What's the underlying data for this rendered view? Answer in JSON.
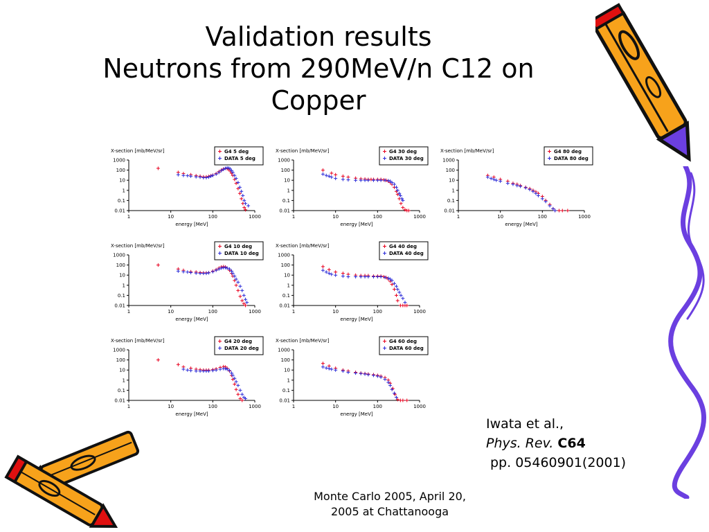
{
  "slide": {
    "title_lines": [
      "Validation results",
      "Neutrons from 290MeV/n C12 on",
      "Copper"
    ],
    "citation": {
      "author": "Iwata et al.,",
      "journal_italic": "Phys. Rev.",
      "journal_bold": "C64",
      "pages": "pp. 05460901(2001)"
    },
    "footer_lines": [
      "Monte Carlo 2005, April 20,",
      "2005 at Chattanooga"
    ]
  },
  "colors": {
    "g4": "#e8001e",
    "data": "#2a2ad8",
    "frame": "#000000",
    "deco_orange": "#f7a21b",
    "deco_purple": "#6b3fe0",
    "deco_red": "#e01010",
    "deco_green": "#1e9a2a"
  },
  "chart_data": [
    {
      "type": "scatter",
      "panel": "5deg",
      "ylabel": "X-section [mb/MeV/sr]",
      "xlabel": "energy [MeV]",
      "xscale": "log",
      "yscale": "log",
      "xlim": [
        1,
        1000
      ],
      "ylim": [
        0.01,
        1000
      ],
      "xticks": [
        "1",
        "10",
        "100",
        "1000"
      ],
      "yticks": [
        "0.01",
        "0.1",
        "1",
        "10",
        "100",
        "1000"
      ],
      "legend": {
        "position": "top-right",
        "entries": [
          "G4   5 deg",
          "DATA 5 deg"
        ]
      },
      "series": [
        {
          "name": "G4   5 deg",
          "color": "#e8001e",
          "x": [
            5,
            15,
            20,
            30,
            40,
            50,
            60,
            70,
            80,
            90,
            100,
            120,
            140,
            160,
            180,
            200,
            220,
            240,
            260,
            280,
            300,
            330,
            360,
            400,
            440,
            480,
            520,
            560,
            600
          ],
          "y": [
            150,
            60,
            45,
            35,
            28,
            25,
            22,
            22,
            24,
            28,
            32,
            45,
            70,
            100,
            130,
            150,
            140,
            110,
            80,
            50,
            30,
            12,
            5,
            1.5,
            0.5,
            0.15,
            0.05,
            0.02,
            0.012
          ]
        },
        {
          "name": "DATA 5 deg",
          "color": "#2a2ad8",
          "x": [
            15,
            20,
            25,
            30,
            40,
            50,
            60,
            70,
            80,
            90,
            100,
            120,
            140,
            160,
            180,
            200,
            220,
            240,
            260,
            280,
            300,
            330,
            360,
            400,
            440,
            480,
            520,
            560,
            600,
            700
          ],
          "y": [
            35,
            30,
            28,
            25,
            22,
            20,
            18,
            18,
            20,
            25,
            30,
            40,
            60,
            90,
            120,
            150,
            170,
            160,
            130,
            90,
            60,
            30,
            15,
            6,
            2,
            0.8,
            0.3,
            0.1,
            0.05,
            0.03
          ]
        }
      ]
    },
    {
      "type": "scatter",
      "panel": "30deg",
      "ylabel": "X-section [mb/MeV/sr]",
      "xlabel": "energy [MeV]",
      "xscale": "log",
      "yscale": "log",
      "xlim": [
        1,
        1000
      ],
      "ylim": [
        0.01,
        1000
      ],
      "xticks": [
        "1",
        "10",
        "100",
        "1000"
      ],
      "yticks": [
        "0.01",
        "0.1",
        "1",
        "10",
        "100",
        "1000"
      ],
      "legend": {
        "position": "top-right",
        "entries": [
          "G4  30 deg",
          "DATA 30 deg"
        ]
      },
      "series": [
        {
          "name": "G4  30 deg",
          "color": "#e8001e",
          "x": [
            5,
            8,
            10,
            15,
            20,
            30,
            40,
            50,
            60,
            70,
            80,
            100,
            120,
            140,
            160,
            180,
            200,
            220,
            250,
            280,
            300,
            330,
            360,
            400,
            450,
            500,
            550
          ],
          "y": [
            100,
            50,
            35,
            25,
            20,
            16,
            14,
            13,
            12,
            12,
            12,
            12,
            12,
            11,
            10,
            8,
            6,
            4,
            2,
            0.8,
            0.4,
            0.15,
            0.05,
            0.02,
            0.012,
            0.01,
            0.01
          ]
        },
        {
          "name": "DATA 30 deg",
          "color": "#2a2ad8",
          "x": [
            5,
            6,
            7,
            8,
            10,
            15,
            20,
            30,
            40,
            50,
            60,
            80,
            100,
            120,
            150,
            180,
            200,
            220,
            250,
            280,
            300,
            330,
            350,
            380,
            400
          ],
          "y": [
            40,
            30,
            25,
            20,
            15,
            12,
            11,
            10,
            10,
            10,
            10,
            10,
            10,
            10,
            10,
            9,
            8,
            6,
            4,
            2,
            1,
            0.5,
            0.3,
            0.15,
            0.1
          ]
        }
      ]
    },
    {
      "type": "scatter",
      "panel": "80deg",
      "ylabel": "X-section [mb/MeV/sr]",
      "xlabel": "energy [MeV]",
      "xscale": "log",
      "yscale": "log",
      "xlim": [
        1,
        1000
      ],
      "ylim": [
        0.01,
        1000
      ],
      "xticks": [
        "1",
        "10",
        "100",
        "1000"
      ],
      "yticks": [
        "0.01",
        "0.1",
        "1",
        "10",
        "100",
        "1000"
      ],
      "legend": {
        "position": "top-right",
        "entries": [
          "G4  80 deg",
          "DATA 80 deg"
        ]
      },
      "series": [
        {
          "name": "G4  80 deg",
          "color": "#e8001e",
          "x": [
            5,
            7,
            10,
            15,
            20,
            25,
            30,
            40,
            50,
            60,
            70,
            80,
            100,
            120,
            150,
            180,
            200,
            250,
            300,
            400
          ],
          "y": [
            30,
            20,
            12,
            8,
            5,
            4,
            3,
            2,
            1.5,
            1,
            0.7,
            0.5,
            0.25,
            0.1,
            0.04,
            0.015,
            0.01,
            0.01,
            0.01,
            0.01
          ]
        },
        {
          "name": "DATA 80 deg",
          "color": "#2a2ad8",
          "x": [
            5,
            6,
            7,
            8,
            10,
            15,
            20,
            25,
            30,
            40,
            50,
            60,
            70,
            80,
            100,
            120,
            150,
            180,
            200
          ],
          "y": [
            20,
            15,
            12,
            10,
            8,
            5,
            4,
            3,
            2.5,
            1.8,
            1.2,
            0.8,
            0.5,
            0.3,
            0.15,
            0.08,
            0.03,
            0.015,
            0.01
          ]
        }
      ]
    },
    {
      "type": "scatter",
      "panel": "10deg",
      "ylabel": "X-section [mb/MeV/sr]",
      "xlabel": "energy [MeV]",
      "xscale": "log",
      "yscale": "log",
      "xlim": [
        1,
        1000
      ],
      "ylim": [
        0.01,
        1000
      ],
      "xticks": [
        "1",
        "10",
        "100",
        "1000"
      ],
      "yticks": [
        "0.01",
        "0.1",
        "1",
        "10",
        "100",
        "1000"
      ],
      "legend": {
        "position": "top-right",
        "entries": [
          "G4  10 deg",
          "DATA 10 deg"
        ]
      },
      "series": [
        {
          "name": "G4  10 deg",
          "color": "#e8001e",
          "x": [
            5,
            15,
            20,
            30,
            40,
            50,
            60,
            70,
            80,
            100,
            120,
            140,
            160,
            180,
            200,
            220,
            250,
            280,
            300,
            330,
            360,
            400,
            450,
            500,
            550,
            600
          ],
          "y": [
            100,
            40,
            30,
            22,
            20,
            18,
            17,
            17,
            18,
            25,
            35,
            50,
            65,
            70,
            65,
            50,
            30,
            15,
            8,
            3,
            1,
            0.3,
            0.08,
            0.03,
            0.015,
            0.01
          ]
        },
        {
          "name": "DATA 10 deg",
          "color": "#2a2ad8",
          "x": [
            15,
            20,
            25,
            30,
            40,
            50,
            60,
            70,
            80,
            100,
            120,
            140,
            160,
            180,
            200,
            220,
            250,
            280,
            300,
            330,
            360,
            400,
            450,
            500,
            550,
            600,
            650
          ],
          "y": [
            25,
            22,
            20,
            18,
            16,
            15,
            15,
            15,
            17,
            22,
            30,
            40,
            50,
            55,
            55,
            50,
            40,
            25,
            15,
            8,
            4,
            2,
            0.8,
            0.3,
            0.1,
            0.04,
            0.02
          ]
        }
      ]
    },
    {
      "type": "scatter",
      "panel": "40deg",
      "ylabel": "X-section [mb/MeV/sr]",
      "xlabel": "energy [MeV]",
      "xscale": "log",
      "yscale": "log",
      "xlim": [
        1,
        1000
      ],
      "ylim": [
        0.01,
        1000
      ],
      "xticks": [
        "1",
        "10",
        "100",
        "1000"
      ],
      "yticks": [
        "0.01",
        "0.1",
        "1",
        "10",
        "100",
        "1000"
      ],
      "legend": {
        "position": "top-right",
        "entries": [
          "G4  40 deg",
          "DATA 40 deg"
        ]
      },
      "series": [
        {
          "name": "G4  40 deg",
          "color": "#e8001e",
          "x": [
            5,
            7,
            10,
            15,
            20,
            30,
            40,
            50,
            60,
            80,
            100,
            120,
            140,
            160,
            180,
            200,
            220,
            250,
            280,
            300,
            350,
            400,
            450,
            500
          ],
          "y": [
            70,
            35,
            20,
            15,
            12,
            10,
            9,
            9,
            9,
            8,
            8,
            8,
            7,
            6,
            4,
            2.5,
            1.2,
            0.4,
            0.1,
            0.03,
            0.01,
            0.01,
            0.01,
            0.01
          ]
        },
        {
          "name": "DATA 40 deg",
          "color": "#2a2ad8",
          "x": [
            5,
            6,
            7,
            8,
            10,
            15,
            20,
            30,
            40,
            50,
            60,
            80,
            100,
            120,
            150,
            180,
            200,
            220,
            250,
            280,
            300,
            330,
            360,
            400,
            450
          ],
          "y": [
            30,
            20,
            15,
            12,
            10,
            8,
            7,
            7,
            7,
            7,
            7,
            7,
            7,
            7,
            6,
            5,
            4,
            3,
            1.5,
            0.8,
            0.4,
            0.2,
            0.1,
            0.05,
            0.02
          ]
        }
      ]
    },
    {
      "type": "scatter",
      "panel": "20deg",
      "ylabel": "X-section [mb/MeV/sr]",
      "xlabel": "energy [MeV]",
      "xscale": "log",
      "yscale": "log",
      "xlim": [
        1,
        1000
      ],
      "ylim": [
        0.01,
        1000
      ],
      "xticks": [
        "1",
        "10",
        "100",
        "1000"
      ],
      "yticks": [
        "0.01",
        "0.1",
        "1",
        "10",
        "100",
        "1000"
      ],
      "legend": {
        "position": "top-right",
        "entries": [
          "G4  20 deg",
          "DATA 20 deg"
        ]
      },
      "series": [
        {
          "name": "G4  20 deg",
          "color": "#e8001e",
          "x": [
            5,
            15,
            20,
            30,
            40,
            50,
            60,
            70,
            80,
            100,
            120,
            150,
            180,
            200,
            220,
            250,
            280,
            300,
            330,
            360,
            400,
            450,
            500
          ],
          "y": [
            100,
            35,
            20,
            15,
            12,
            11,
            10,
            10,
            10,
            11,
            13,
            18,
            22,
            20,
            15,
            8,
            3,
            1.2,
            0.4,
            0.12,
            0.04,
            0.015,
            0.01
          ]
        },
        {
          "name": "DATA 20 deg",
          "color": "#2a2ad8",
          "x": [
            20,
            25,
            30,
            40,
            50,
            60,
            70,
            80,
            100,
            120,
            150,
            180,
            200,
            220,
            250,
            280,
            300,
            330,
            360,
            400,
            450,
            500,
            550,
            600
          ],
          "y": [
            12,
            10,
            9,
            8,
            8,
            8,
            8,
            8,
            9,
            10,
            12,
            14,
            14,
            12,
            9,
            5,
            3,
            1.5,
            0.7,
            0.3,
            0.1,
            0.04,
            0.02,
            0.015
          ]
        }
      ]
    },
    {
      "type": "scatter",
      "panel": "60deg",
      "ylabel": "X-section [mb/MeV/sr]",
      "xlabel": "energy [MeV]",
      "xscale": "log",
      "yscale": "log",
      "xlim": [
        1,
        1000
      ],
      "ylim": [
        0.01,
        1000
      ],
      "xticks": [
        "1",
        "10",
        "100",
        "1000"
      ],
      "yticks": [
        "0.01",
        "0.1",
        "1",
        "10",
        "100",
        "1000"
      ],
      "legend": {
        "position": "top-right",
        "entries": [
          "G4  60 deg",
          "DATA 60 deg"
        ]
      },
      "series": [
        {
          "name": "G4  60 deg",
          "color": "#e8001e",
          "x": [
            5,
            7,
            10,
            15,
            20,
            30,
            40,
            50,
            60,
            80,
            100,
            120,
            150,
            180,
            200,
            230,
            260,
            300,
            350,
            400,
            500
          ],
          "y": [
            45,
            25,
            15,
            10,
            8,
            6,
            5,
            4.5,
            4,
            3.5,
            3,
            2.5,
            1.8,
            1,
            0.5,
            0.15,
            0.04,
            0.012,
            0.01,
            0.01,
            0.01
          ]
        },
        {
          "name": "DATA 60 deg",
          "color": "#2a2ad8",
          "x": [
            5,
            6,
            7,
            8,
            10,
            15,
            20,
            30,
            40,
            50,
            60,
            80,
            100,
            120,
            150,
            180,
            200,
            220,
            250,
            280
          ],
          "y": [
            20,
            16,
            14,
            12,
            10,
            8,
            6,
            5,
            4.5,
            4,
            3.5,
            3,
            2.5,
            2,
            1.2,
            0.6,
            0.3,
            0.12,
            0.05,
            0.02
          ]
        }
      ]
    }
  ]
}
